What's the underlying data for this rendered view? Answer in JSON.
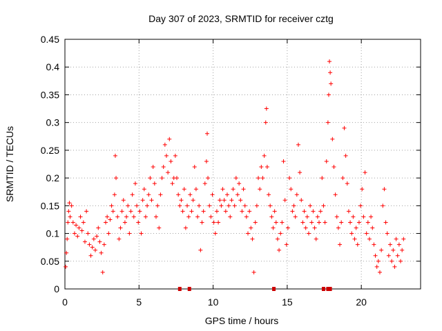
{
  "chart_data": {
    "type": "scatter",
    "title": "Day 307 of 2023, SRMTID for receiver cztg",
    "xlabel": "GPS time / hours",
    "ylabel": "SRMTID / TECUs",
    "xlim": [
      0,
      24
    ],
    "ylim": [
      0,
      0.45
    ],
    "x_ticks": [
      0,
      5,
      10,
      15,
      20
    ],
    "x_tick_labels": [
      "0",
      "5",
      "10",
      "15",
      "20"
    ],
    "y_ticks": [
      0,
      0.05,
      0.1,
      0.15,
      0.2,
      0.25,
      0.3,
      0.35,
      0.4,
      0.45
    ],
    "y_tick_labels": [
      "0",
      "0.05",
      "0.1",
      "0.15",
      "0.2",
      "0.25",
      "0.3",
      "0.35",
      "0.4",
      "0.45"
    ],
    "grid": true,
    "legend": "none",
    "marker": "plus",
    "color": "#ff0000",
    "gap_marker_color": "#cc0000",
    "series": [
      {
        "points": [
          [
            0.05,
            0.04
          ],
          [
            0.1,
            0.065
          ],
          [
            0.15,
            0.09
          ],
          [
            0.2,
            0.12
          ],
          [
            0.25,
            0.14
          ],
          [
            0.3,
            0.155
          ],
          [
            0.35,
            0.13
          ],
          [
            0.45,
            0.15
          ],
          [
            0.55,
            0.12
          ],
          [
            0.65,
            0.1
          ],
          [
            0.75,
            0.115
          ],
          [
            0.85,
            0.095
          ],
          [
            0.95,
            0.11
          ],
          [
            1.05,
            0.13
          ],
          [
            1.15,
            0.105
          ],
          [
            1.25,
            0.12
          ],
          [
            1.35,
            0.085
          ],
          [
            1.45,
            0.14
          ],
          [
            1.55,
            0.1
          ],
          [
            1.65,
            0.08
          ],
          [
            1.75,
            0.06
          ],
          [
            1.85,
            0.075
          ],
          [
            1.95,
            0.09
          ],
          [
            2.05,
            0.07
          ],
          [
            2.15,
            0.095
          ],
          [
            2.25,
            0.11
          ],
          [
            2.35,
            0.085
          ],
          [
            2.45,
            0.065
          ],
          [
            2.55,
            0.03
          ],
          [
            2.65,
            0.08
          ],
          [
            2.75,
            0.12
          ],
          [
            2.85,
            0.13
          ],
          [
            2.95,
            0.1
          ],
          [
            3.05,
            0.125
          ],
          [
            3.15,
            0.15
          ],
          [
            3.25,
            0.14
          ],
          [
            3.35,
            0.17
          ],
          [
            3.4,
            0.24
          ],
          [
            3.45,
            0.2
          ],
          [
            3.55,
            0.13
          ],
          [
            3.65,
            0.09
          ],
          [
            3.75,
            0.11
          ],
          [
            3.85,
            0.14
          ],
          [
            3.95,
            0.16
          ],
          [
            4.05,
            0.12
          ],
          [
            4.15,
            0.13
          ],
          [
            4.25,
            0.15
          ],
          [
            4.35,
            0.1
          ],
          [
            4.45,
            0.14
          ],
          [
            4.55,
            0.17
          ],
          [
            4.65,
            0.13
          ],
          [
            4.75,
            0.19
          ],
          [
            4.85,
            0.15
          ],
          [
            4.95,
            0.12
          ],
          [
            5.05,
            0.14
          ],
          [
            5.15,
            0.1
          ],
          [
            5.25,
            0.16
          ],
          [
            5.35,
            0.18
          ],
          [
            5.45,
            0.13
          ],
          [
            5.55,
            0.15
          ],
          [
            5.65,
            0.17
          ],
          [
            5.75,
            0.2
          ],
          [
            5.85,
            0.16
          ],
          [
            5.95,
            0.22
          ],
          [
            6.05,
            0.19
          ],
          [
            6.15,
            0.13
          ],
          [
            6.25,
            0.15
          ],
          [
            6.35,
            0.11
          ],
          [
            6.45,
            0.17
          ],
          [
            6.55,
            0.2
          ],
          [
            6.65,
            0.22
          ],
          [
            6.75,
            0.26
          ],
          [
            6.85,
            0.24
          ],
          [
            6.95,
            0.21
          ],
          [
            7.05,
            0.27
          ],
          [
            7.15,
            0.23
          ],
          [
            7.25,
            0.19
          ],
          [
            7.35,
            0.2
          ],
          [
            7.45,
            0.24
          ],
          [
            7.55,
            0.2
          ],
          [
            7.65,
            0.17
          ],
          [
            7.75,
            0.15
          ],
          [
            7.85,
            0.16
          ],
          [
            7.95,
            0.14
          ],
          [
            8.05,
            0.18
          ],
          [
            8.15,
            0.11
          ],
          [
            8.25,
            0.15
          ],
          [
            8.35,
            0.13
          ],
          [
            8.45,
            0.17
          ],
          [
            8.55,
            0.14
          ],
          [
            8.65,
            0.16
          ],
          [
            8.75,
            0.22
          ],
          [
            8.85,
            0.18
          ],
          [
            8.95,
            0.13
          ],
          [
            9.05,
            0.15
          ],
          [
            9.15,
            0.07
          ],
          [
            9.25,
            0.12
          ],
          [
            9.35,
            0.14
          ],
          [
            9.45,
            0.19
          ],
          [
            9.55,
            0.23
          ],
          [
            9.6,
            0.28
          ],
          [
            9.65,
            0.2
          ],
          [
            9.75,
            0.15
          ],
          [
            9.85,
            0.13
          ],
          [
            9.95,
            0.17
          ],
          [
            10.05,
            0.12
          ],
          [
            10.15,
            0.1
          ],
          [
            10.25,
            0.14
          ],
          [
            10.35,
            0.12
          ],
          [
            10.45,
            0.16
          ],
          [
            10.55,
            0.15
          ],
          [
            10.65,
            0.18
          ],
          [
            10.75,
            0.16
          ],
          [
            10.85,
            0.14
          ],
          [
            10.95,
            0.17
          ],
          [
            11.05,
            0.15
          ],
          [
            11.15,
            0.13
          ],
          [
            11.25,
            0.16
          ],
          [
            11.35,
            0.18
          ],
          [
            11.45,
            0.15
          ],
          [
            11.55,
            0.2
          ],
          [
            11.65,
            0.17
          ],
          [
            11.75,
            0.19
          ],
          [
            11.85,
            0.16
          ],
          [
            11.95,
            0.14
          ],
          [
            12.05,
            0.18
          ],
          [
            12.15,
            0.15
          ],
          [
            12.25,
            0.13
          ],
          [
            12.35,
            0.1
          ],
          [
            12.45,
            0.14
          ],
          [
            12.55,
            0.11
          ],
          [
            12.65,
            0.09
          ],
          [
            12.75,
            0.03
          ],
          [
            12.85,
            0.12
          ],
          [
            12.95,
            0.15
          ],
          [
            13.05,
            0.2
          ],
          [
            13.15,
            0.18
          ],
          [
            13.25,
            0.22
          ],
          [
            13.35,
            0.2
          ],
          [
            13.45,
            0.24
          ],
          [
            13.55,
            0.3
          ],
          [
            13.6,
            0.325
          ],
          [
            13.65,
            0.22
          ],
          [
            13.75,
            0.17
          ],
          [
            13.85,
            0.15
          ],
          [
            13.95,
            0.13
          ],
          [
            14.05,
            0.11
          ],
          [
            14.15,
            0.14
          ],
          [
            14.25,
            0.12
          ],
          [
            14.35,
            0.09
          ],
          [
            14.45,
            0.07
          ],
          [
            14.55,
            0.1
          ],
          [
            14.65,
            0.12
          ],
          [
            14.75,
            0.23
          ],
          [
            14.85,
            0.16
          ],
          [
            14.95,
            0.08
          ],
          [
            15.05,
            0.11
          ],
          [
            15.15,
            0.2
          ],
          [
            15.25,
            0.18
          ],
          [
            15.35,
            0.14
          ],
          [
            15.45,
            0.15
          ],
          [
            15.55,
            0.13
          ],
          [
            15.65,
            0.17
          ],
          [
            15.75,
            0.26
          ],
          [
            15.85,
            0.21
          ],
          [
            15.95,
            0.16
          ],
          [
            16.05,
            0.12
          ],
          [
            16.15,
            0.14
          ],
          [
            16.25,
            0.11
          ],
          [
            16.35,
            0.13
          ],
          [
            16.45,
            0.1
          ],
          [
            16.55,
            0.15
          ],
          [
            16.65,
            0.12
          ],
          [
            16.75,
            0.14
          ],
          [
            16.85,
            0.11
          ],
          [
            16.95,
            0.09
          ],
          [
            17.05,
            0.13
          ],
          [
            17.15,
            0.12
          ],
          [
            17.25,
            0.14
          ],
          [
            17.35,
            0.2
          ],
          [
            17.45,
            0.15
          ],
          [
            17.55,
            0.12
          ],
          [
            17.65,
            0.23
          ],
          [
            17.75,
            0.3
          ],
          [
            17.8,
            0.35
          ],
          [
            17.85,
            0.41
          ],
          [
            17.9,
            0.39
          ],
          [
            17.95,
            0.37
          ],
          [
            18.05,
            0.27
          ],
          [
            18.15,
            0.22
          ],
          [
            18.25,
            0.17
          ],
          [
            18.35,
            0.13
          ],
          [
            18.45,
            0.11
          ],
          [
            18.55,
            0.08
          ],
          [
            18.65,
            0.12
          ],
          [
            18.75,
            0.2
          ],
          [
            18.85,
            0.29
          ],
          [
            18.95,
            0.24
          ],
          [
            19.05,
            0.19
          ],
          [
            19.15,
            0.14
          ],
          [
            19.25,
            0.12
          ],
          [
            19.35,
            0.1
          ],
          [
            19.45,
            0.13
          ],
          [
            19.55,
            0.09
          ],
          [
            19.65,
            0.11
          ],
          [
            19.75,
            0.08
          ],
          [
            19.85,
            0.12
          ],
          [
            19.95,
            0.15
          ],
          [
            20.05,
            0.18
          ],
          [
            20.15,
            0.13
          ],
          [
            20.25,
            0.21
          ],
          [
            20.35,
            0.1
          ],
          [
            20.45,
            0.12
          ],
          [
            20.55,
            0.09
          ],
          [
            20.65,
            0.13
          ],
          [
            20.75,
            0.11
          ],
          [
            20.85,
            0.08
          ],
          [
            20.95,
            0.06
          ],
          [
            21.05,
            0.04
          ],
          [
            21.15,
            0.05
          ],
          [
            21.25,
            0.03
          ],
          [
            21.35,
            0.07
          ],
          [
            21.45,
            0.15
          ],
          [
            21.55,
            0.18
          ],
          [
            21.65,
            0.12
          ],
          [
            21.75,
            0.1
          ],
          [
            21.85,
            0.06
          ],
          [
            21.95,
            0.08
          ],
          [
            22.05,
            0.05
          ],
          [
            22.15,
            0.07
          ],
          [
            22.25,
            0.04
          ],
          [
            22.35,
            0.09
          ],
          [
            22.45,
            0.06
          ],
          [
            22.55,
            0.08
          ],
          [
            22.65,
            0.05
          ],
          [
            22.75,
            0.07
          ],
          [
            22.85,
            0.09
          ]
        ]
      }
    ],
    "gap_markers_x": [
      7.75,
      8.4,
      14.1,
      17.45,
      17.75,
      17.9
    ]
  }
}
